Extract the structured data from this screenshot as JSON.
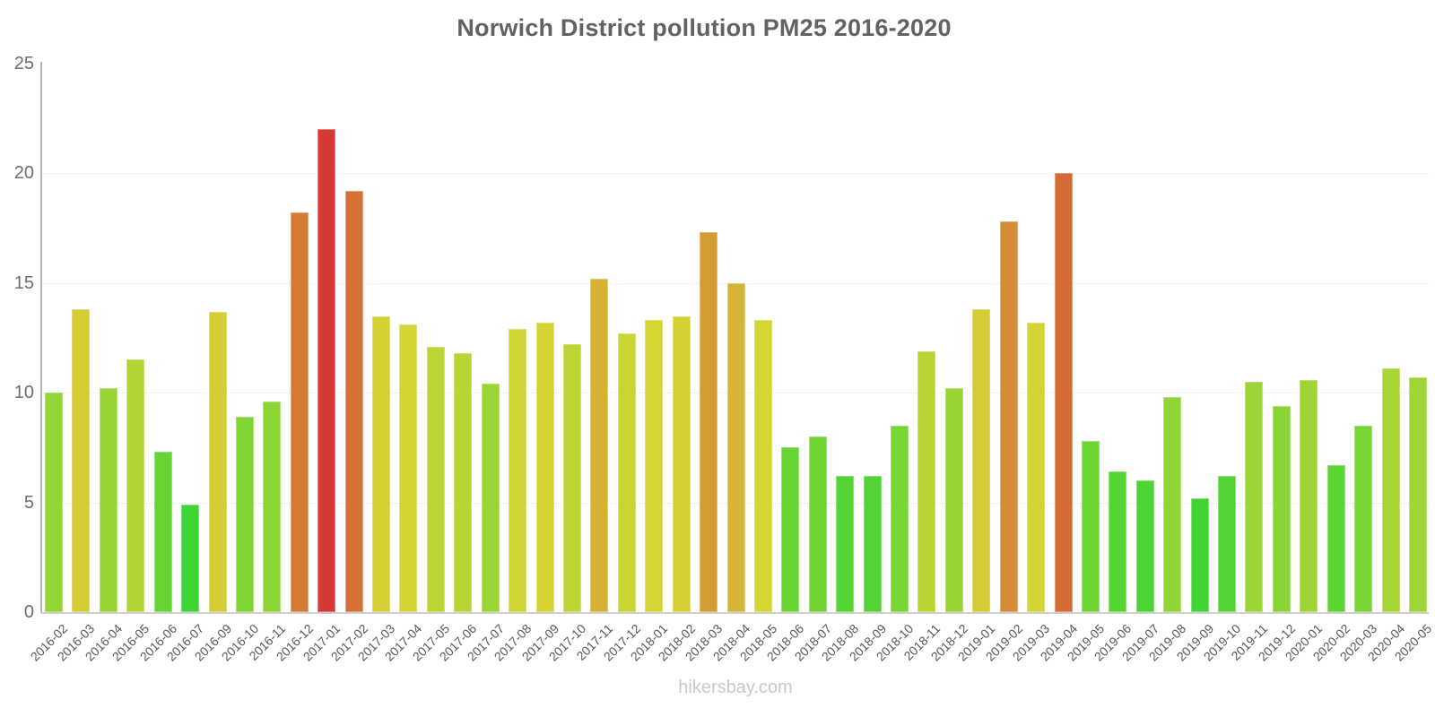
{
  "footer": "hikersbay.com",
  "y_axis": {
    "tick_labels": [
      "0",
      "5",
      "10",
      "15",
      "20",
      "25"
    ]
  },
  "chart_data": {
    "type": "bar",
    "title": "Norwich District pollution PM25 2016-2020",
    "xlabel": "",
    "ylabel": "",
    "ylim": [
      0,
      25
    ],
    "yticks": [
      0,
      5,
      10,
      15,
      20,
      25
    ],
    "grid_ticks": [
      5,
      10,
      15,
      20
    ],
    "grid": "horizontal-dotted",
    "legend": "none",
    "categories": [
      "2016-02",
      "2016-03",
      "2016-04",
      "2016-05",
      "2016-06",
      "2016-07",
      "2016-09",
      "2016-10",
      "2016-11",
      "2016-12",
      "2017-01",
      "2017-02",
      "2017-03",
      "2017-04",
      "2017-05",
      "2017-06",
      "2017-07",
      "2017-08",
      "2017-09",
      "2017-10",
      "2017-11",
      "2017-12",
      "2018-01",
      "2018-02",
      "2018-03",
      "2018-04",
      "2018-05",
      "2018-06",
      "2018-07",
      "2018-08",
      "2018-09",
      "2018-10",
      "2018-11",
      "2018-12",
      "2019-01",
      "2019-02",
      "2019-03",
      "2019-04",
      "2019-05",
      "2019-06",
      "2019-07",
      "2019-08",
      "2019-09",
      "2019-10",
      "2019-11",
      "2019-12",
      "2020-01",
      "2020-02",
      "2020-03",
      "2020-04",
      "2020-05"
    ],
    "values": [
      10.0,
      13.8,
      10.2,
      11.5,
      7.3,
      4.9,
      13.7,
      8.9,
      9.6,
      18.2,
      22.0,
      19.2,
      13.5,
      13.1,
      12.1,
      11.8,
      10.4,
      12.9,
      13.2,
      12.2,
      15.2,
      12.7,
      13.3,
      13.5,
      17.3,
      15.0,
      13.3,
      7.5,
      8.0,
      6.2,
      6.2,
      8.5,
      11.9,
      10.2,
      13.8,
      17.8,
      13.2,
      20.0,
      7.8,
      6.4,
      6.0,
      9.8,
      5.2,
      6.2,
      10.5,
      9.4,
      10.6,
      6.7,
      8.5,
      11.1,
      10.7
    ],
    "color_scale": {
      "description": "bar color follows value: green (low) through yellow and orange to red (high)",
      "low_hex": "#2ed63c",
      "mid_hex": "#c8d62e",
      "high_hex": "#d63b3b",
      "hue_stops": [
        [
          4.9,
          117
        ],
        [
          10,
          85
        ],
        [
          13.8,
          56
        ],
        [
          15.2,
          47
        ],
        [
          17.5,
          38
        ],
        [
          18.2,
          26
        ],
        [
          20,
          20
        ],
        [
          22,
          2
        ]
      ],
      "saturation_pct": 66,
      "lightness_pct": 52
    }
  }
}
